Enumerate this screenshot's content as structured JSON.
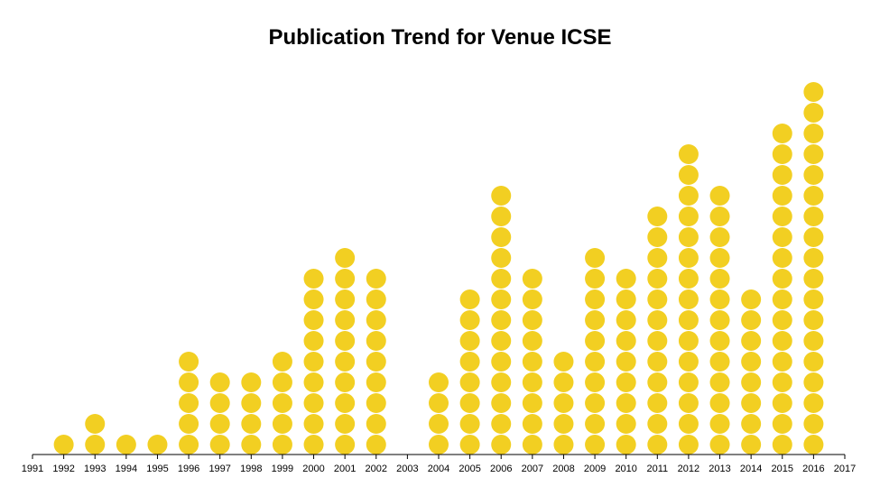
{
  "chart_data": {
    "type": "scatter",
    "title": "Publication Trend for Venue ICSE",
    "xlabel": "",
    "ylabel": "",
    "x": [
      1991,
      1992,
      1993,
      1994,
      1995,
      1996,
      1997,
      1998,
      1999,
      2000,
      2001,
      2002,
      2003,
      2004,
      2005,
      2006,
      2007,
      2008,
      2009,
      2010,
      2011,
      2012,
      2013,
      2014,
      2015,
      2016,
      2017
    ],
    "tick_labels": [
      "1991",
      "1992",
      "1993",
      "1994",
      "1995",
      "1996",
      "1997",
      "1998",
      "1999",
      "2000",
      "2001",
      "2002",
      "2003",
      "2004",
      "2005",
      "2006",
      "2007",
      "2008",
      "2009",
      "2010",
      "2011",
      "2012",
      "2013",
      "2014",
      "2015",
      "2016",
      "2017"
    ],
    "counts": [
      0,
      1,
      2,
      1,
      1,
      5,
      4,
      4,
      5,
      9,
      10,
      9,
      0,
      4,
      8,
      13,
      9,
      5,
      10,
      9,
      12,
      15,
      13,
      8,
      16,
      18,
      0
    ],
    "xlim": [
      1991,
      2017
    ],
    "grid": false,
    "marker_color": "#f2cf22"
  }
}
